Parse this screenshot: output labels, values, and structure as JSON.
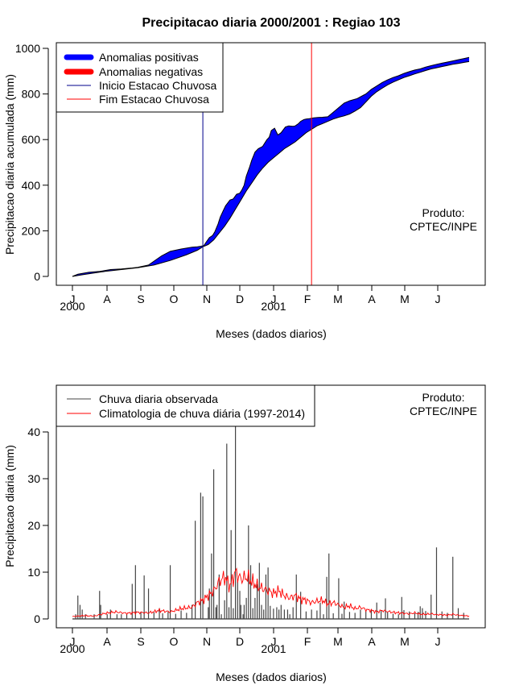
{
  "title": "Precipitacao diaria 2000/2001 : Regiao 103",
  "colors": {
    "positive": "#0000ff",
    "negative": "#ff0000",
    "start_line": "#00008b",
    "end_line": "#ff0000",
    "observed": "#444444",
    "climatology": "#ff0000"
  },
  "chart_data": [
    {
      "type": "area",
      "name": "accumulated",
      "ylabel": "Precipitacao diaria acumulada (mm)",
      "xlabel": "Meses (dados diarios)",
      "ylim": [
        0,
        1000
      ],
      "yticks": [
        0,
        200,
        400,
        600,
        800,
        1000
      ],
      "month_ticks": [
        "J",
        "A",
        "S",
        "O",
        "N",
        "D",
        "J",
        "F",
        "M",
        "A",
        "M",
        "J"
      ],
      "year_labels": [
        "2000",
        "2001"
      ],
      "product_label": [
        "Produto:",
        "CPTEC/INPE"
      ],
      "legend": [
        {
          "label": "Anomalias positivas",
          "color": "#0000ff",
          "style": "thick"
        },
        {
          "label": "Anomalias negativas",
          "color": "#ff0000",
          "style": "thick"
        },
        {
          "label": "Inicio Estacao Chuvosa",
          "color": "#00008b",
          "style": "line"
        },
        {
          "label": "Fim Estacao Chuvosa",
          "color": "#ff0000",
          "style": "line"
        }
      ],
      "start_season_day": 120,
      "end_season_day": 220,
      "series": [
        {
          "name": "observed_accumulated",
          "days": [
            0,
            5,
            15,
            25,
            35,
            45,
            55,
            60,
            70,
            82,
            90,
            100,
            110,
            115,
            118,
            121,
            123,
            126,
            129,
            131,
            134,
            136,
            139,
            141,
            145,
            148,
            151,
            154,
            156,
            158,
            160,
            163,
            165,
            168,
            171,
            175,
            177,
            179,
            181,
            183,
            186,
            189,
            192,
            196,
            199,
            203,
            205,
            208,
            210,
            213,
            215,
            218,
            222,
            226,
            230,
            235,
            240,
            245,
            250,
            255,
            262,
            268,
            270,
            275,
            280,
            285,
            290,
            295,
            300,
            305,
            310,
            315,
            320,
            325,
            330,
            335,
            340,
            345,
            350,
            355,
            360,
            365
          ],
          "values": [
            0,
            10,
            18,
            22,
            30,
            33,
            37,
            40,
            50,
            90,
            110,
            120,
            128,
            130,
            132,
            135,
            150,
            170,
            180,
            195,
            230,
            260,
            290,
            310,
            335,
            340,
            360,
            365,
            380,
            400,
            440,
            480,
            510,
            545,
            560,
            570,
            585,
            600,
            610,
            640,
            650,
            620,
            630,
            655,
            660,
            658,
            660,
            670,
            680,
            688,
            690,
            692,
            695,
            697,
            698,
            700,
            720,
            740,
            760,
            770,
            780,
            795,
            800,
            820,
            835,
            850,
            862,
            872,
            880,
            890,
            898,
            905,
            910,
            918,
            924,
            930,
            935,
            940,
            945,
            950,
            955,
            960
          ]
        },
        {
          "name": "climatology_accumulated",
          "days": [
            0,
            10,
            20,
            30,
            45,
            60,
            75,
            90,
            105,
            115,
            120,
            125,
            130,
            135,
            140,
            145,
            150,
            155,
            160,
            165,
            170,
            175,
            180,
            185,
            190,
            195,
            200,
            205,
            210,
            215,
            220,
            225,
            230,
            235,
            240,
            245,
            250,
            255,
            260,
            265,
            270,
            275,
            280,
            285,
            290,
            295,
            300,
            305,
            310,
            315,
            320,
            325,
            330,
            335,
            340,
            345,
            350,
            355,
            360,
            365
          ],
          "values": [
            0,
            8,
            15,
            22,
            30,
            38,
            50,
            70,
            95,
            115,
            130,
            140,
            160,
            190,
            220,
            255,
            295,
            335,
            375,
            410,
            445,
            475,
            500,
            520,
            540,
            560,
            575,
            590,
            610,
            630,
            645,
            660,
            670,
            680,
            690,
            698,
            704,
            712,
            725,
            740,
            765,
            790,
            810,
            825,
            840,
            852,
            862,
            872,
            880,
            888,
            895,
            903,
            910,
            915,
            920,
            925,
            930,
            934,
            938,
            942
          ]
        }
      ]
    },
    {
      "type": "bar",
      "name": "daily",
      "ylabel": "Precipitacao diaria (mm)",
      "xlabel": "Meses (dados diarios)",
      "ylim": [
        0,
        50
      ],
      "yticks": [
        0,
        10,
        20,
        30,
        40
      ],
      "month_ticks": [
        "J",
        "A",
        "S",
        "O",
        "N",
        "D",
        "J",
        "F",
        "M",
        "A",
        "M",
        "J"
      ],
      "year_labels": [
        "2000",
        "2001"
      ],
      "product_label": [
        "Produto:",
        "CPTEC/INPE"
      ],
      "legend": [
        {
          "label": "Chuva diaria observada",
          "color": "#444444",
          "style": "line"
        },
        {
          "label": "Climatologia de chuva diária (1997-2014)",
          "color": "#ff0000",
          "style": "line"
        }
      ],
      "series": [
        {
          "name": "observed_daily",
          "days": [
            3,
            5,
            7,
            9,
            12,
            20,
            25,
            26,
            32,
            35,
            41,
            45,
            50,
            55,
            58,
            63,
            66,
            70,
            75,
            80,
            83,
            88,
            90,
            95,
            100,
            105,
            110,
            113,
            118,
            120,
            125,
            126,
            128,
            130,
            132,
            133,
            135,
            137,
            140,
            142,
            144,
            146,
            148,
            150,
            152,
            154,
            155,
            157,
            158,
            160,
            162,
            164,
            166,
            168,
            170,
            172,
            174,
            176,
            178,
            180,
            182,
            185,
            188,
            190,
            192,
            195,
            198,
            200,
            203,
            206,
            210,
            215,
            220,
            225,
            228,
            231,
            234,
            236,
            240,
            245,
            248,
            250,
            255,
            260,
            265,
            270,
            275,
            280,
            284,
            288,
            290,
            295,
            300,
            303,
            305,
            310,
            315,
            318,
            320,
            322,
            325,
            330,
            335,
            340,
            345,
            350,
            355,
            360
          ],
          "values": [
            1,
            5,
            3,
            2,
            1,
            1,
            6,
            3,
            1,
            2,
            1,
            1,
            1,
            7.5,
            11.5,
            1.5,
            9.3,
            6.5,
            1.4,
            2.3,
            1.2,
            1.5,
            11.5,
            1.1,
            1.8,
            1.3,
            3,
            21,
            27,
            26.2,
            2.5,
            6.5,
            14,
            32,
            2.5,
            3,
            9.5,
            1,
            4,
            37.5,
            2.5,
            19,
            2.3,
            42,
            8,
            6,
            3,
            1,
            3,
            4.5,
            20,
            11.5,
            2.3,
            4.5,
            7.5,
            12,
            3,
            2,
            9.5,
            11,
            2.8,
            2.2,
            2.5,
            2,
            3,
            2,
            2,
            1,
            2.5,
            9.5,
            5.8,
            1.6,
            2,
            1.8,
            3.5,
            1,
            9,
            14,
            1.2,
            8.7,
            1.1,
            3.7,
            1.5,
            1.3,
            2,
            1.7,
            2,
            3.5,
            1.9,
            4.4,
            1.4,
            1.1,
            1,
            4.7,
            1.9,
            1.6,
            1.2,
            1.5,
            2.7,
            2.3,
            1.7,
            5.2,
            15.3,
            1.6,
            1.3,
            13.3,
            2.3,
            1.3
          ]
        },
        {
          "name": "climatology_daily",
          "days": [
            0,
            10,
            20,
            30,
            40,
            50,
            60,
            70,
            80,
            90,
            100,
            110,
            115,
            120,
            125,
            130,
            135,
            140,
            145,
            150,
            155,
            160,
            165,
            170,
            175,
            180,
            185,
            190,
            195,
            200,
            205,
            210,
            215,
            220,
            225,
            230,
            235,
            240,
            245,
            250,
            255,
            260,
            265,
            270,
            275,
            280,
            285,
            290,
            295,
            300,
            305,
            310,
            315,
            320,
            325,
            330,
            335,
            340,
            345,
            350,
            355,
            360,
            365
          ],
          "values": [
            0.5,
            0.7,
            0.6,
            1.2,
            1.5,
            1.2,
            1.4,
            1.3,
            1.8,
            1.5,
            2.2,
            2.5,
            3.5,
            4,
            5,
            6,
            8,
            9,
            7,
            10,
            8.5,
            9,
            8,
            7,
            6.5,
            6,
            5.5,
            6,
            5,
            4.5,
            5,
            4.2,
            4,
            3.5,
            3.8,
            4,
            3.2,
            3.5,
            3,
            2.5,
            2.8,
            2.2,
            2.5,
            2,
            1.8,
            1.5,
            1.8,
            1.6,
            1.4,
            1.3,
            1.2,
            1.1,
            1.3,
            1,
            1,
            1.1,
            0.9,
            0.9,
            0.8,
            1,
            0.8,
            0.7,
            0.6
          ]
        }
      ]
    }
  ]
}
